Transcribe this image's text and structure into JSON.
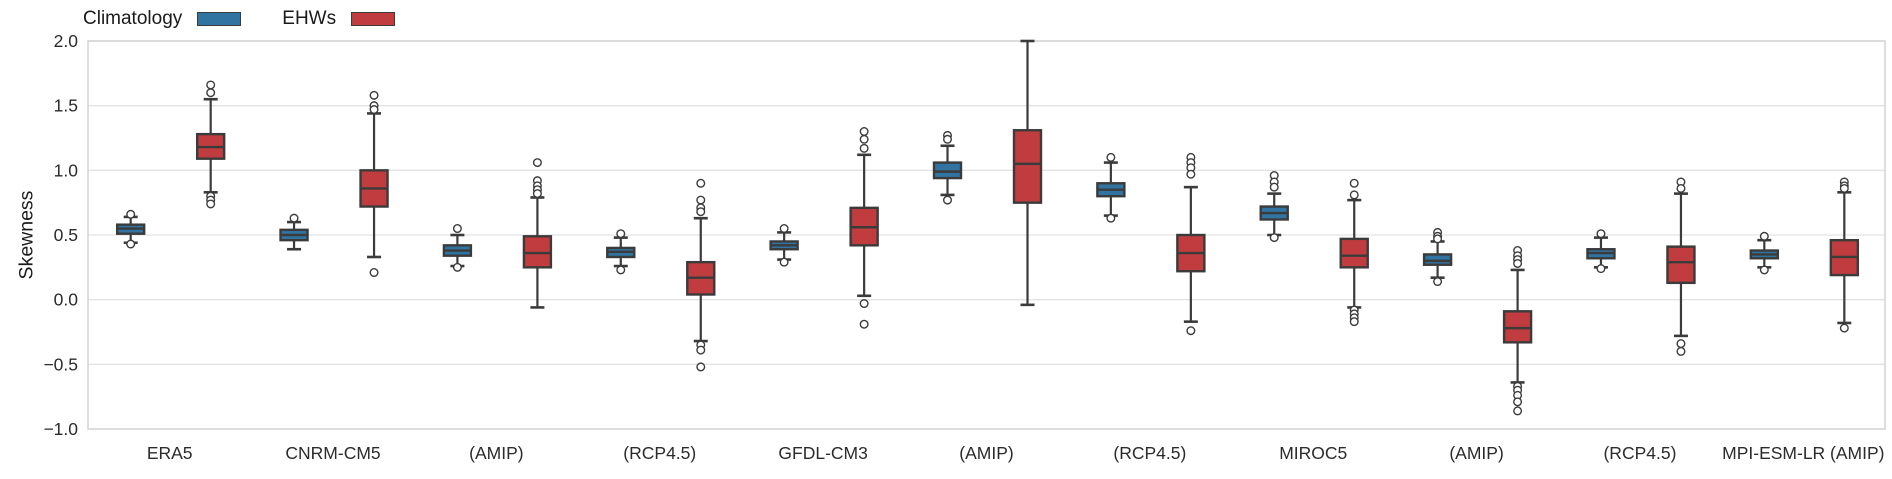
{
  "chart_data": {
    "type": "boxplot",
    "title": "",
    "ylabel": "Skewness",
    "xlabel": "",
    "ylim": [
      -1.0,
      2.0
    ],
    "yticks": [
      2.0,
      1.5,
      1.0,
      0.5,
      0.0,
      -0.5,
      -1.0
    ],
    "ytick_labels": [
      "2.0",
      "1.5",
      "1.0",
      "0.5",
      "0.0",
      "−0.5",
      "−1.0"
    ],
    "grid": "horizontal",
    "legend_position": "top-left",
    "categories": [
      "ERA5",
      "CNRM-CM5",
      "(AMIP)",
      "(RCP4.5)",
      "GFDL-CM3",
      "(AMIP)",
      "(RCP4.5)",
      "MIROC5",
      "(AMIP)",
      "(RCP4.5)",
      "MPI-ESM-LR (AMIP)"
    ],
    "series": [
      {
        "name": "Climatology",
        "color": "#3274a1",
        "boxes": [
          {
            "whislo": 0.44,
            "q1": 0.51,
            "med": 0.55,
            "q3": 0.58,
            "whishi": 0.64,
            "outliers": [
              0.66,
              0.43
            ]
          },
          {
            "whislo": 0.39,
            "q1": 0.46,
            "med": 0.5,
            "q3": 0.54,
            "whishi": 0.6,
            "outliers": [
              0.63
            ]
          },
          {
            "whislo": 0.26,
            "q1": 0.34,
            "med": 0.38,
            "q3": 0.42,
            "whishi": 0.5,
            "outliers": [
              0.55,
              0.25
            ]
          },
          {
            "whislo": 0.26,
            "q1": 0.33,
            "med": 0.37,
            "q3": 0.4,
            "whishi": 0.48,
            "outliers": [
              0.51,
              0.23
            ]
          },
          {
            "whislo": 0.31,
            "q1": 0.39,
            "med": 0.42,
            "q3": 0.45,
            "whishi": 0.52,
            "outliers": [
              0.55,
              0.29
            ]
          },
          {
            "whislo": 0.81,
            "q1": 0.94,
            "med": 0.99,
            "q3": 1.06,
            "whishi": 1.19,
            "outliers": [
              1.27,
              1.24,
              0.77
            ]
          },
          {
            "whislo": 0.65,
            "q1": 0.8,
            "med": 0.85,
            "q3": 0.9,
            "whishi": 1.06,
            "outliers": [
              1.1,
              0.63
            ]
          },
          {
            "whislo": 0.5,
            "q1": 0.62,
            "med": 0.67,
            "q3": 0.72,
            "whishi": 0.82,
            "outliers": [
              0.96,
              0.91,
              0.87,
              0.48
            ]
          },
          {
            "whislo": 0.17,
            "q1": 0.27,
            "med": 0.3,
            "q3": 0.35,
            "whishi": 0.45,
            "outliers": [
              0.52,
              0.49,
              0.47,
              0.14
            ]
          },
          {
            "whislo": 0.25,
            "q1": 0.32,
            "med": 0.36,
            "q3": 0.39,
            "whishi": 0.48,
            "outliers": [
              0.51,
              0.24
            ]
          },
          {
            "whislo": 0.25,
            "q1": 0.32,
            "med": 0.35,
            "q3": 0.38,
            "whishi": 0.46,
            "outliers": [
              0.49,
              0.23
            ]
          }
        ]
      },
      {
        "name": "EHWs",
        "color": "#c13c3e",
        "boxes": [
          {
            "whislo": 0.83,
            "q1": 1.09,
            "med": 1.18,
            "q3": 1.28,
            "whishi": 1.55,
            "outliers": [
              1.66,
              1.6,
              0.8,
              0.77,
              0.74
            ]
          },
          {
            "whislo": 0.33,
            "q1": 0.72,
            "med": 0.86,
            "q3": 1.0,
            "whishi": 1.44,
            "outliers": [
              1.58,
              1.5,
              1.47,
              0.21
            ]
          },
          {
            "whislo": -0.06,
            "q1": 0.25,
            "med": 0.36,
            "q3": 0.49,
            "whishi": 0.79,
            "outliers": [
              1.06,
              0.92,
              0.88,
              0.85,
              0.82
            ]
          },
          {
            "whislo": -0.32,
            "q1": 0.04,
            "med": 0.17,
            "q3": 0.29,
            "whishi": 0.63,
            "outliers": [
              0.9,
              0.77,
              0.71,
              0.68,
              -0.35,
              -0.39,
              -0.52
            ]
          },
          {
            "whislo": 0.03,
            "q1": 0.42,
            "med": 0.56,
            "q3": 0.71,
            "whishi": 1.12,
            "outliers": [
              1.3,
              1.24,
              1.17,
              -0.03,
              -0.19
            ]
          },
          {
            "whislo": -0.04,
            "q1": 0.75,
            "med": 1.05,
            "q3": 1.31,
            "whishi": 2.0,
            "outliers": []
          },
          {
            "whislo": -0.17,
            "q1": 0.22,
            "med": 0.36,
            "q3": 0.5,
            "whishi": 0.87,
            "outliers": [
              1.1,
              1.06,
              1.02,
              0.97,
              -0.24
            ]
          },
          {
            "whislo": -0.06,
            "q1": 0.25,
            "med": 0.34,
            "q3": 0.47,
            "whishi": 0.77,
            "outliers": [
              0.9,
              0.81,
              -0.08,
              -0.11,
              -0.14,
              -0.17
            ]
          },
          {
            "whislo": -0.64,
            "q1": -0.33,
            "med": -0.22,
            "q3": -0.09,
            "whishi": 0.23,
            "outliers": [
              0.38,
              0.34,
              0.31,
              0.28,
              -0.67,
              -0.7,
              -0.74,
              -0.79,
              -0.86
            ]
          },
          {
            "whislo": -0.28,
            "q1": 0.13,
            "med": 0.29,
            "q3": 0.41,
            "whishi": 0.82,
            "outliers": [
              0.91,
              0.86,
              -0.34,
              -0.4
            ]
          },
          {
            "whislo": -0.18,
            "q1": 0.19,
            "med": 0.33,
            "q3": 0.46,
            "whishi": 0.83,
            "outliers": [
              0.91,
              0.88,
              0.86,
              -0.22
            ]
          }
        ]
      }
    ],
    "style": {
      "box_edge_color": "#3b3b3b",
      "grid_color": "#e3e3e3",
      "spine_color": "#cfcfcf",
      "text_color": "#2b2b2b",
      "background": "#ffffff"
    }
  }
}
